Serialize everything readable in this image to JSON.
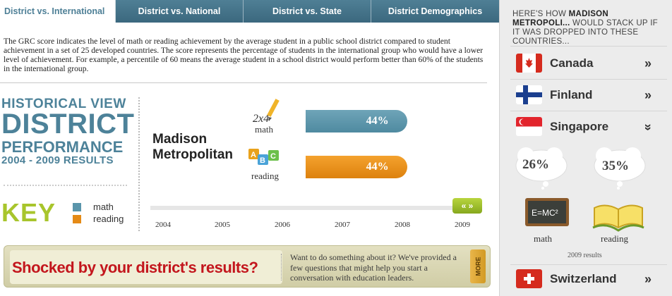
{
  "tabs": [
    {
      "label": "District vs. International"
    },
    {
      "label": "District vs. National"
    },
    {
      "label": "District vs. State"
    },
    {
      "label": "District Demographics"
    }
  ],
  "description": "The GRC score indicates the level of math or reading achievement by the average student in a public school district compared to student achievement in a set of 25 developed countries. The score represents the percentage of students in the international group who would have a lower level of achievement. For example, a percentile of 60 means the average student in a school district would perform better than 60% of the students in the international group.",
  "historical": {
    "line1": "HISTORICAL VIEW",
    "line2": "DISTRICT",
    "line3": "PERFORMANCE",
    "line4": "2004 - 2009 RESULTS"
  },
  "key": {
    "title": "KEY",
    "math": "math",
    "reading": "reading",
    "math_color": "#5a95ab",
    "reading_color": "#e58a16"
  },
  "chart": {
    "district_line1": "Madison",
    "district_line2": "Metropolitan",
    "math_label": "math",
    "reading_label": "reading",
    "math_icon_text": "2x4",
    "reading_icon_text": [
      "A",
      "B",
      "C"
    ],
    "slider_label": "« »"
  },
  "chart_data": {
    "type": "bar",
    "categories": [
      "math",
      "reading"
    ],
    "values": [
      44,
      44
    ],
    "value_labels": [
      "44%",
      "44%"
    ],
    "years": [
      "2004",
      "2005",
      "2006",
      "2007",
      "2008",
      "2009"
    ],
    "selected_year": "2009",
    "colors": [
      "#5a95ab",
      "#e58a16"
    ]
  },
  "banner": {
    "title": "Shocked by your district's results?",
    "text": "Want to do something about it? We've provided a few questions that might help you start a conversation with education leaders.",
    "more": "MORE"
  },
  "panel": {
    "head_pre": "HERE'S HOW",
    "head_bold": "MADISON METROPOLI...",
    "head_post": "WOULD STACK UP IF IT WAS DROPPED INTO THESE COUNTRIES...",
    "countries": [
      {
        "name": "Canada",
        "chevron": "»",
        "flag": "canada-flag-icon"
      },
      {
        "name": "Finland",
        "chevron": "»",
        "flag": "finland-flag-icon"
      },
      {
        "name": "Singapore",
        "chevron": "»",
        "flag": "singapore-flag-icon"
      },
      {
        "name": "Switzerland",
        "chevron": "»",
        "flag": "switzerland-flag-icon"
      }
    ],
    "expanded": {
      "math_pct": "26%",
      "reading_pct": "35%",
      "math_label": "math",
      "reading_label": "reading",
      "formula": "E=MC²",
      "year_note": "2009 results"
    }
  }
}
